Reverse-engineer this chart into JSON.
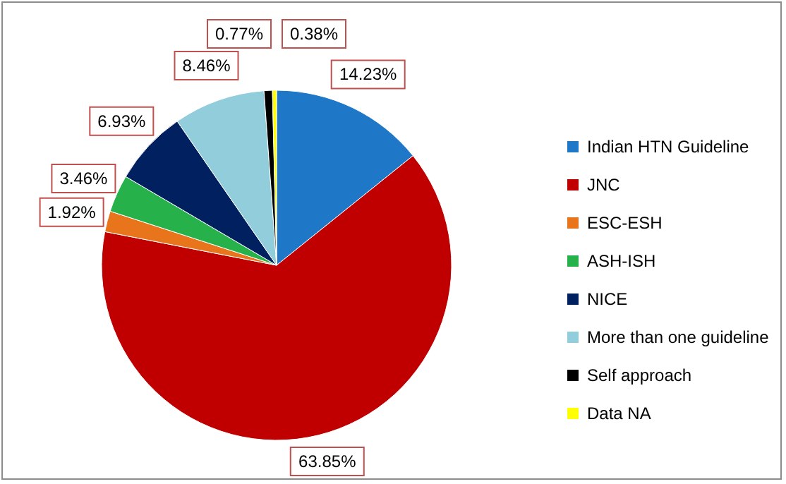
{
  "chart_data": {
    "type": "pie",
    "categories": [
      "Indian HTN Guideline",
      "JNC",
      "ESC-ESH",
      "ASH-ISH",
      "NICE",
      "More than one guideline",
      "Self approach",
      "Data NA"
    ],
    "values": [
      14.23,
      63.85,
      1.92,
      3.46,
      6.93,
      8.46,
      0.77,
      0.38
    ],
    "colors": [
      "#1f77c8",
      "#c00000",
      "#e8741c",
      "#27b14b",
      "#002060",
      "#92cddc",
      "#000000",
      "#ffff00"
    ],
    "value_labels": [
      "14.23%",
      "63.85%",
      "1.92%",
      "3.46%",
      "6.93%",
      "8.46%",
      "0.77%",
      "0.38%"
    ],
    "legend": "right"
  }
}
